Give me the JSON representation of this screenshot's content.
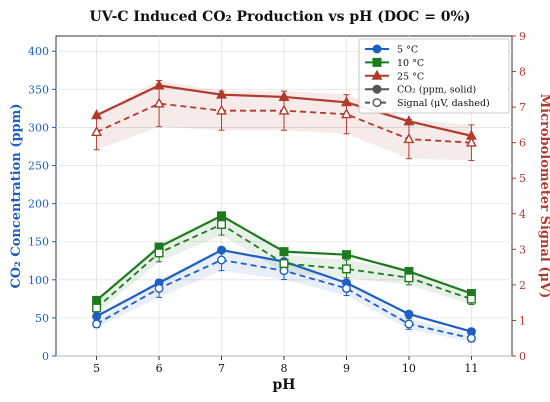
{
  "chart_data": {
    "type": "line",
    "title": "UV-C Induced CO₂ Production vs pH  (DOC = 0%)",
    "xlabel": "pH",
    "ylabel_left": "CO₂ Concentration (ppm)",
    "ylabel_right": "Microbolometer Signal (μV)",
    "x": [
      5,
      6,
      7,
      8,
      9,
      10,
      11
    ],
    "xlim": [
      4.35,
      11.65
    ],
    "ylim_left": [
      0,
      420
    ],
    "ylim_right": [
      0,
      9
    ],
    "yticks_left": [
      0,
      50,
      100,
      150,
      200,
      250,
      300,
      350,
      400
    ],
    "yticks_right": [
      0,
      1,
      2,
      3,
      4,
      5,
      6,
      7,
      8,
      9
    ],
    "grid": true,
    "legend_position": "top-right",
    "colors": {
      "5C": "#1f5fc4",
      "10C": "#1e7a1e",
      "25C": "#b03a2e",
      "left_axis": "#1f5fc4",
      "right_axis": "#b03a2e"
    },
    "series": [
      {
        "name": "5 °C",
        "key": "5C",
        "axis": "left",
        "style": "solid",
        "marker": "circle",
        "values": [
          52,
          96,
          139,
          124,
          96,
          55,
          32
        ]
      },
      {
        "name": "10 °C",
        "key": "10C",
        "axis": "left",
        "style": "solid",
        "marker": "square",
        "values": [
          73,
          143,
          184,
          137,
          133,
          111,
          82
        ]
      },
      {
        "name": "25 °C",
        "key": "25C",
        "axis": "left",
        "style": "solid",
        "marker": "triangle",
        "values": [
          316,
          355,
          343,
          340,
          333,
          308,
          289
        ]
      },
      {
        "key": "5C",
        "axis": "right",
        "style": "dashed",
        "marker": "circle-open",
        "values": [
          0.9,
          1.9,
          2.7,
          2.4,
          1.9,
          0.9,
          0.5
        ],
        "err": [
          0.1,
          0.25,
          0.3,
          0.25,
          0.2,
          0.15,
          0.1
        ]
      },
      {
        "key": "10C",
        "axis": "right",
        "style": "dashed",
        "marker": "square-open",
        "values": [
          1.35,
          2.9,
          3.7,
          2.6,
          2.45,
          2.2,
          1.6
        ],
        "err": [
          0.15,
          0.25,
          0.3,
          0.25,
          0.25,
          0.2,
          0.15
        ]
      },
      {
        "key": "25C",
        "axis": "right",
        "style": "dashed",
        "marker": "triangle-open",
        "values": [
          6.3,
          7.1,
          6.9,
          6.9,
          6.8,
          6.1,
          6.0
        ],
        "err": [
          0.5,
          0.65,
          0.55,
          0.55,
          0.55,
          0.55,
          0.5
        ]
      }
    ],
    "legend": [
      {
        "label": "5 °C",
        "key": "5C",
        "marker": "circle",
        "style": "solid"
      },
      {
        "label": "10 °C",
        "key": "10C",
        "marker": "square",
        "style": "solid"
      },
      {
        "label": "25 °C",
        "key": "25C",
        "marker": "triangle",
        "style": "solid"
      },
      {
        "label": "CO₂ (ppm, solid)",
        "key": "gray",
        "marker": "circle",
        "style": "solid"
      },
      {
        "label": "Signal (μV, dashed)",
        "key": "gray",
        "marker": "circle-open",
        "style": "dashed"
      }
    ]
  }
}
